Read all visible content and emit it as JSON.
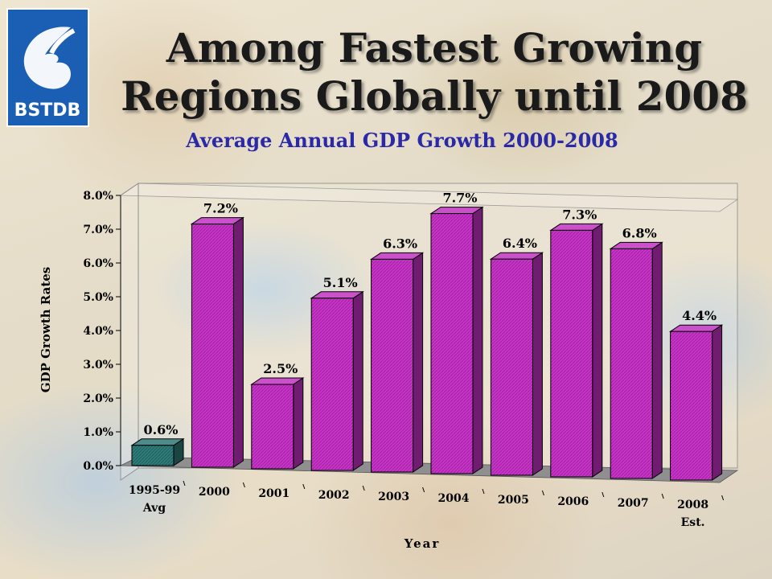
{
  "logo": {
    "text": "BSTDB",
    "color": "#1a5fb4"
  },
  "title": {
    "line1": "Among Fastest Growing",
    "line2": "Regions Globally until 2008"
  },
  "subtitle": "Average Annual GDP Growth 2000-2008",
  "chart_data": {
    "type": "bar",
    "categories": [
      "1995-99 Avg",
      "2000",
      "2001",
      "2002",
      "2003",
      "2004",
      "2005",
      "2006",
      "2007",
      "2008 Est."
    ],
    "category_lines": [
      [
        "1995-99",
        "Avg"
      ],
      [
        "2000"
      ],
      [
        "2001"
      ],
      [
        "2002"
      ],
      [
        "2003"
      ],
      [
        "2004"
      ],
      [
        "2005"
      ],
      [
        "2006"
      ],
      [
        "2007"
      ],
      [
        "2008",
        "Est."
      ]
    ],
    "values": [
      0.6,
      7.2,
      2.5,
      5.1,
      6.3,
      7.7,
      6.4,
      7.3,
      6.8,
      4.4
    ],
    "data_labels": [
      "0.6%",
      "7.2%",
      "2.5%",
      "5.1%",
      "6.3%",
      "7.7%",
      "6.4%",
      "7.3%",
      "6.8%",
      "4.4%"
    ],
    "bar_colors": [
      "#2e7d7a",
      "#cc33cc",
      "#cc33cc",
      "#cc33cc",
      "#cc33cc",
      "#cc33cc",
      "#cc33cc",
      "#cc33cc",
      "#cc33cc",
      "#cc33cc"
    ],
    "ylim": [
      0,
      8
    ],
    "yticks": [
      "0.0%",
      "1.0%",
      "2.0%",
      "3.0%",
      "4.0%",
      "5.0%",
      "6.0%",
      "7.0%",
      "8.0%"
    ],
    "xlabel": "Year",
    "ylabel": "GDP Growth Rates",
    "grid": false,
    "legend": "none"
  }
}
